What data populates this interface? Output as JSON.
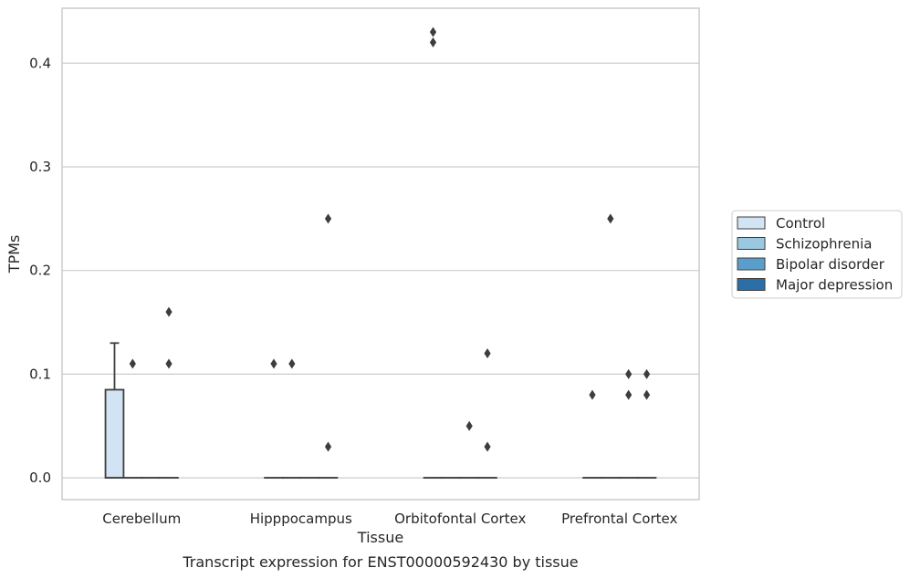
{
  "caption": "Transcript expression for ENST00000592430 by tissue",
  "chart_data": {
    "type": "box",
    "title": "",
    "xlabel": "Tissue",
    "ylabel": "TPMs",
    "ylim": [
      -0.021,
      0.453
    ],
    "yticks": [
      0.0,
      0.1,
      0.2,
      0.3,
      0.4
    ],
    "ytick_labels": [
      "0.0",
      "0.1",
      "0.2",
      "0.3",
      "0.4"
    ],
    "grid": "horizontal",
    "legend_position": "right",
    "categories": [
      "Cerebellum",
      "Hipppocampus",
      "Orbitofontal Cortex",
      "Prefrontal Cortex"
    ],
    "series": [
      {
        "name": "Control",
        "color": "#d2e3f3",
        "boxes": [
          {
            "q1": 0.0,
            "median": 0.0,
            "q3": 0.085,
            "whisker_low": 0.0,
            "whisker_high": 0.13,
            "outliers": []
          },
          {
            "q1": 0.0,
            "median": 0.0,
            "q3": 0.0,
            "whisker_low": 0.0,
            "whisker_high": 0.0,
            "outliers": [
              0.11
            ]
          },
          {
            "q1": 0.0,
            "median": 0.0,
            "q3": 0.0,
            "whisker_low": 0.0,
            "whisker_high": 0.0,
            "outliers": [
              0.43,
              0.42
            ]
          },
          {
            "q1": 0.0,
            "median": 0.0,
            "q3": 0.0,
            "whisker_low": 0.0,
            "whisker_high": 0.0,
            "outliers": [
              0.08
            ]
          }
        ]
      },
      {
        "name": "Schizophrenia",
        "color": "#9ac8e0",
        "boxes": [
          {
            "q1": 0.0,
            "median": 0.0,
            "q3": 0.0,
            "whisker_low": 0.0,
            "whisker_high": 0.0,
            "outliers": [
              0.11
            ]
          },
          {
            "q1": 0.0,
            "median": 0.0,
            "q3": 0.0,
            "whisker_low": 0.0,
            "whisker_high": 0.0,
            "outliers": [
              0.11
            ]
          },
          {
            "q1": 0.0,
            "median": 0.0,
            "q3": 0.0,
            "whisker_low": 0.0,
            "whisker_high": 0.0,
            "outliers": []
          },
          {
            "q1": 0.0,
            "median": 0.0,
            "q3": 0.0,
            "whisker_low": 0.0,
            "whisker_high": 0.0,
            "outliers": [
              0.25
            ]
          }
        ]
      },
      {
        "name": "Bipolar disorder",
        "color": "#5a9fcb",
        "boxes": [
          {
            "q1": 0.0,
            "median": 0.0,
            "q3": 0.0,
            "whisker_low": 0.0,
            "whisker_high": 0.0,
            "outliers": []
          },
          {
            "q1": 0.0,
            "median": 0.0,
            "q3": 0.0,
            "whisker_low": 0.0,
            "whisker_high": 0.0,
            "outliers": []
          },
          {
            "q1": 0.0,
            "median": 0.0,
            "q3": 0.0,
            "whisker_low": 0.0,
            "whisker_high": 0.0,
            "outliers": [
              0.05
            ]
          },
          {
            "q1": 0.0,
            "median": 0.0,
            "q3": 0.0,
            "whisker_low": 0.0,
            "whisker_high": 0.0,
            "outliers": [
              0.1,
              0.08
            ]
          }
        ]
      },
      {
        "name": "Major depression",
        "color": "#2c6ea8",
        "boxes": [
          {
            "q1": 0.0,
            "median": 0.0,
            "q3": 0.0,
            "whisker_low": 0.0,
            "whisker_high": 0.0,
            "outliers": [
              0.16,
              0.11
            ]
          },
          {
            "q1": 0.0,
            "median": 0.0,
            "q3": 0.0,
            "whisker_low": 0.0,
            "whisker_high": 0.0,
            "outliers": [
              0.25,
              0.03
            ]
          },
          {
            "q1": 0.0,
            "median": 0.0,
            "q3": 0.0,
            "whisker_low": 0.0,
            "whisker_high": 0.0,
            "outliers": [
              0.12,
              0.03
            ]
          },
          {
            "q1": 0.0,
            "median": 0.0,
            "q3": 0.0,
            "whisker_low": 0.0,
            "whisker_high": 0.0,
            "outliers": [
              0.1,
              0.08
            ]
          }
        ]
      }
    ],
    "colors": {
      "grid": "#cccccc",
      "frame": "#cccccc",
      "box_edge": "#3d3d3d",
      "outlier": "#3d3d3d"
    }
  }
}
